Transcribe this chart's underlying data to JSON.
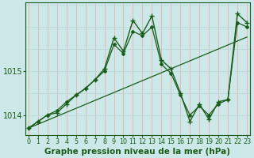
{
  "title": "Graphe pression niveau de la mer (hPa)",
  "bg_color": "#cce8e8",
  "grid_color_v": "#e8b0b0",
  "grid_color_h": "#c0d8d8",
  "line_color": "#1a5c1a",
  "x_labels": [
    "0",
    "1",
    "2",
    "3",
    "4",
    "5",
    "6",
    "7",
    "8",
    "9",
    "10",
    "11",
    "12",
    "13",
    "14",
    "15",
    "16",
    "17",
    "18",
    "19",
    "20",
    "21",
    "22",
    "23"
  ],
  "x_values": [
    0,
    1,
    2,
    3,
    4,
    5,
    6,
    7,
    8,
    9,
    10,
    11,
    12,
    13,
    14,
    15,
    16,
    17,
    18,
    19,
    20,
    21,
    22,
    23
  ],
  "y_main": [
    1013.7,
    1013.85,
    1014.0,
    1014.05,
    1014.25,
    1014.45,
    1014.6,
    1014.8,
    1015.05,
    1015.75,
    1015.45,
    1016.15,
    1015.85,
    1016.25,
    1015.25,
    1015.05,
    1014.5,
    1013.85,
    1014.25,
    1013.9,
    1014.3,
    1014.35,
    1016.3,
    1016.1
  ],
  "y_smooth": [
    1013.7,
    1013.85,
    1014.0,
    1014.1,
    1014.3,
    1014.45,
    1014.6,
    1014.8,
    1015.0,
    1015.6,
    1015.4,
    1015.9,
    1015.8,
    1016.0,
    1015.15,
    1014.95,
    1014.45,
    1014.0,
    1014.2,
    1014.0,
    1014.25,
    1014.35,
    1016.1,
    1016.0
  ],
  "y_trend": [
    1013.7,
    1013.79,
    1013.88,
    1013.97,
    1014.06,
    1014.15,
    1014.24,
    1014.33,
    1014.42,
    1014.51,
    1014.6,
    1014.69,
    1014.78,
    1014.87,
    1014.96,
    1015.05,
    1015.14,
    1015.23,
    1015.32,
    1015.41,
    1015.5,
    1015.59,
    1015.68,
    1015.77
  ],
  "ylim": [
    1013.55,
    1016.55
  ],
  "yticks": [
    1014,
    1015
  ],
  "ylabel_fontsize": 7,
  "xlabel_fontsize": 5.8,
  "title_fontsize": 7.5
}
